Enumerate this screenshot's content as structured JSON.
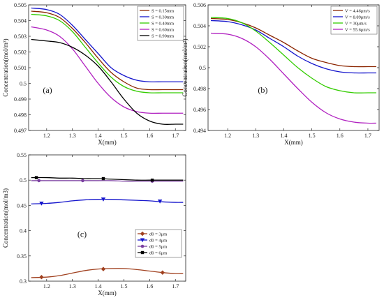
{
  "chart_data": [
    {
      "panel": "(a)",
      "type": "line",
      "xlabel": "X(mm)",
      "ylabel": "Concentration(mol/m³)",
      "xlim": [
        1.13,
        1.74
      ],
      "ylim": [
        0.497,
        0.505
      ],
      "xticks": [
        "1.2",
        "1.3",
        "1.4",
        "1.5",
        "1.6",
        "1.7"
      ],
      "yticks": [
        "0.497",
        "0.498",
        "0.499",
        "0.5",
        "0.501",
        "0.502",
        "0.503",
        "0.504",
        "0.505"
      ],
      "legend_position": "top-right",
      "series": [
        {
          "name": "S = 0.15mm",
          "color": "#8B2500",
          "x": [
            1.14,
            1.2,
            1.25,
            1.3,
            1.35,
            1.4,
            1.45,
            1.5,
            1.55,
            1.6,
            1.65,
            1.7,
            1.73
          ],
          "y": [
            0.5046,
            0.5045,
            0.5042,
            0.5035,
            0.5026,
            0.5016,
            0.5007,
            0.5001,
            0.4997,
            0.4996,
            0.4996,
            0.4996,
            0.4996
          ]
        },
        {
          "name": "S = 0.30mm",
          "color": "#1515CC",
          "x": [
            1.14,
            1.2,
            1.25,
            1.3,
            1.35,
            1.4,
            1.45,
            1.5,
            1.55,
            1.6,
            1.65,
            1.7,
            1.73
          ],
          "y": [
            0.5048,
            0.5047,
            0.5044,
            0.5037,
            0.5028,
            0.5019,
            0.501,
            0.5005,
            0.5002,
            0.5001,
            0.5001,
            0.5001,
            0.5001
          ]
        },
        {
          "name": "S = 0.40mm",
          "color": "#33CC00",
          "x": [
            1.14,
            1.2,
            1.25,
            1.3,
            1.35,
            1.4,
            1.45,
            1.5,
            1.55,
            1.6,
            1.65,
            1.7,
            1.73
          ],
          "y": [
            0.5044,
            0.5043,
            0.504,
            0.5033,
            0.5023,
            0.5013,
            0.5004,
            0.4998,
            0.4995,
            0.4994,
            0.4994,
            0.4994,
            0.4994
          ]
        },
        {
          "name": "S = 0.60mm",
          "color": "#B020C0",
          "x": [
            1.14,
            1.2,
            1.25,
            1.3,
            1.35,
            1.4,
            1.45,
            1.5,
            1.55,
            1.6,
            1.65,
            1.7,
            1.73
          ],
          "y": [
            0.5036,
            0.5034,
            0.503,
            0.5022,
            0.5011,
            0.5,
            0.4991,
            0.4985,
            0.4982,
            0.4981,
            0.4981,
            0.4981,
            0.4981
          ]
        },
        {
          "name": "S = 0.90mm",
          "color": "#000000",
          "x": [
            1.14,
            1.2,
            1.25,
            1.3,
            1.35,
            1.4,
            1.45,
            1.5,
            1.55,
            1.6,
            1.65,
            1.7,
            1.73
          ],
          "y": [
            0.5028,
            0.5027,
            0.5026,
            0.5023,
            0.5018,
            0.5011,
            0.5001,
            0.499,
            0.4981,
            0.4976,
            0.4974,
            0.4974,
            0.4974
          ]
        }
      ]
    },
    {
      "panel": "(b)",
      "type": "line",
      "xlabel": "X(mm)",
      "ylabel": "Concentration(mol/m³)",
      "xlim": [
        1.13,
        1.74
      ],
      "ylim": [
        0.494,
        0.506
      ],
      "xticks": [
        "1.2",
        "1.3",
        "1.4",
        "1.5",
        "1.6",
        "1.7"
      ],
      "yticks": [
        "0.494",
        "0.496",
        "0.498",
        "0.5",
        "0.502",
        "0.504",
        "0.506"
      ],
      "legend_position": "top-right",
      "series": [
        {
          "name": "V = 4.46μm/s",
          "color": "#8B2500",
          "x": [
            1.14,
            1.2,
            1.25,
            1.3,
            1.35,
            1.4,
            1.45,
            1.5,
            1.55,
            1.6,
            1.65,
            1.7,
            1.73
          ],
          "y": [
            0.5047,
            0.5046,
            0.5043,
            0.5038,
            0.5031,
            0.5024,
            0.5016,
            0.5009,
            0.5005,
            0.5002,
            0.5001,
            0.5001,
            0.5001
          ]
        },
        {
          "name": "V = 8.89μm/s",
          "color": "#1515CC",
          "x": [
            1.14,
            1.2,
            1.25,
            1.3,
            1.35,
            1.4,
            1.45,
            1.5,
            1.55,
            1.6,
            1.65,
            1.7,
            1.73
          ],
          "y": [
            0.5045,
            0.5044,
            0.5041,
            0.5036,
            0.5028,
            0.502,
            0.5011,
            0.5004,
            0.4999,
            0.4996,
            0.4995,
            0.4995,
            0.4995
          ]
        },
        {
          "name": "V = 30μm/s",
          "color": "#33CC00",
          "x": [
            1.14,
            1.2,
            1.25,
            1.3,
            1.35,
            1.4,
            1.45,
            1.5,
            1.55,
            1.6,
            1.65,
            1.7,
            1.73
          ],
          "y": [
            0.5048,
            0.5047,
            0.5043,
            0.5035,
            0.5024,
            0.5012,
            0.5,
            0.499,
            0.4982,
            0.4978,
            0.4976,
            0.4976,
            0.4976
          ]
        },
        {
          "name": "V = 55.6μm/s",
          "color": "#B020C0",
          "x": [
            1.14,
            1.2,
            1.25,
            1.3,
            1.35,
            1.4,
            1.45,
            1.5,
            1.55,
            1.6,
            1.65,
            1.7,
            1.73
          ],
          "y": [
            0.5033,
            0.5032,
            0.5028,
            0.502,
            0.5008,
            0.4994,
            0.498,
            0.4967,
            0.4957,
            0.4951,
            0.4948,
            0.4947,
            0.4947
          ]
        }
      ]
    },
    {
      "panel": "(c)",
      "type": "line",
      "xlabel": "X(mm)",
      "ylabel": "Concentration(mol/m3)",
      "xlim": [
        1.13,
        1.74
      ],
      "ylim": [
        0.3,
        0.55
      ],
      "xticks": [
        "1.2",
        "1.3",
        "1.4",
        "1.5",
        "1.6",
        "1.7"
      ],
      "yticks": [
        "0.3",
        "0.35",
        "0.4",
        "0.45",
        "0.5",
        "0.55"
      ],
      "legend_position": "bottom-right",
      "series": [
        {
          "name": "d0 = 3μm",
          "color": "#A0401F",
          "marker": "diamond",
          "x": [
            1.14,
            1.2,
            1.25,
            1.3,
            1.35,
            1.4,
            1.45,
            1.5,
            1.55,
            1.6,
            1.65,
            1.7,
            1.73
          ],
          "y": [
            0.307,
            0.308,
            0.311,
            0.316,
            0.321,
            0.324,
            0.325,
            0.325,
            0.323,
            0.32,
            0.317,
            0.315,
            0.315
          ],
          "marker_x": [
            1.18,
            1.42,
            1.65
          ],
          "marker_y": [
            0.308,
            0.324,
            0.317
          ]
        },
        {
          "name": "d0 = 4μm",
          "color": "#1515CC",
          "marker": "triangle-down",
          "x": [
            1.14,
            1.2,
            1.25,
            1.3,
            1.35,
            1.4,
            1.45,
            1.5,
            1.55,
            1.6,
            1.65,
            1.7,
            1.73
          ],
          "y": [
            0.453,
            0.454,
            0.456,
            0.459,
            0.461,
            0.462,
            0.462,
            0.461,
            0.46,
            0.459,
            0.457,
            0.456,
            0.456
          ],
          "marker_x": [
            1.18,
            1.42,
            1.64
          ],
          "marker_y": [
            0.454,
            0.462,
            0.458
          ]
        },
        {
          "name": "d0 = 5μm",
          "color": "#7A3FA0",
          "marker": "circle",
          "x": [
            1.14,
            1.2,
            1.25,
            1.3,
            1.35,
            1.4,
            1.45,
            1.5,
            1.55,
            1.6,
            1.65,
            1.7,
            1.73
          ],
          "y": [
            0.499,
            0.499,
            0.499,
            0.499,
            0.499,
            0.499,
            0.499,
            0.498,
            0.498,
            0.498,
            0.498,
            0.498,
            0.498
          ],
          "marker_x": [
            1.17,
            1.34,
            1.61
          ],
          "marker_y": [
            0.499,
            0.499,
            0.498
          ]
        },
        {
          "name": "d0 = 6μm",
          "color": "#000000",
          "marker": "square",
          "x": [
            1.14,
            1.2,
            1.25,
            1.3,
            1.35,
            1.4,
            1.45,
            1.5,
            1.55,
            1.6,
            1.65,
            1.7,
            1.73
          ],
          "y": [
            0.505,
            0.505,
            0.504,
            0.504,
            0.503,
            0.503,
            0.502,
            0.501,
            0.5,
            0.5,
            0.5,
            0.5,
            0.5
          ],
          "marker_x": [
            1.16,
            1.42,
            1.61
          ],
          "marker_y": [
            0.505,
            0.503,
            0.5
          ]
        }
      ]
    }
  ]
}
